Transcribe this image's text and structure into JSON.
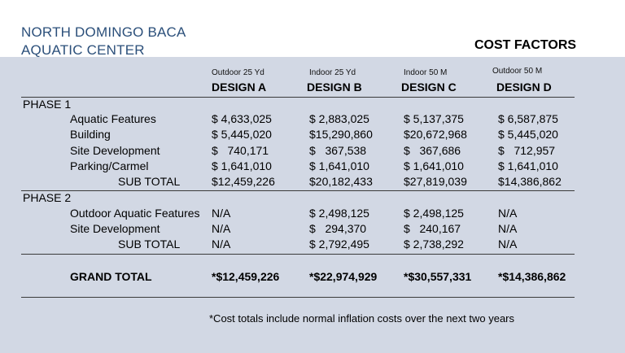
{
  "header": {
    "title_line1": "NORTH DOMINGO BACA",
    "title_line2": "AQUATIC CENTER",
    "heading": "COST FACTORS"
  },
  "designs": [
    {
      "sub": "Outdoor 25 Yd",
      "name": "DESIGN A"
    },
    {
      "sub": "Indoor 25 Yd",
      "name": "DESIGN B"
    },
    {
      "sub": "Indoor 50 M",
      "name": "DESIGN C"
    },
    {
      "sub": "Outdoor 50 M",
      "name": "DESIGN D"
    }
  ],
  "phase1": {
    "label": "PHASE 1",
    "rows": [
      {
        "label": "Aquatic Features",
        "values": [
          "$ 4,633,025",
          "$ 2,883,025",
          "$ 5,137,375",
          "$ 6,587,875"
        ]
      },
      {
        "label": "Building",
        "values": [
          "$ 5,445,020",
          "$15,290,860",
          "$20,672,968",
          "$ 5,445,020"
        ]
      },
      {
        "label": "Site Development",
        "values": [
          "$   740,171",
          "$   367,538",
          "$   367,686",
          "$   712,957"
        ]
      },
      {
        "label": "Parking/Carmel",
        "values": [
          "$ 1,641,010",
          "$ 1,641,010",
          "$ 1,641,010",
          "$ 1,641,010"
        ]
      }
    ],
    "subtotal": {
      "label": "SUB TOTAL",
      "values": [
        "$12,459,226",
        "$20,182,433",
        "$27,819,039",
        "$14,386,862"
      ]
    }
  },
  "phase2": {
    "label": "PHASE 2",
    "rows": [
      {
        "label": "Outdoor Aquatic Features",
        "values": [
          "N/A",
          "$ 2,498,125",
          "$ 2,498,125",
          "N/A"
        ]
      },
      {
        "label": "Site Development",
        "values": [
          "N/A",
          "$   294,370",
          "$   240,167",
          "N/A"
        ]
      }
    ],
    "subtotal": {
      "label": "SUB TOTAL",
      "values": [
        "N/A",
        "$ 2,792,495",
        "$ 2,738,292",
        "N/A"
      ]
    }
  },
  "grand_total": {
    "label": "GRAND TOTAL",
    "values": [
      "*$12,459,226",
      "*$22,974,929",
      "*$30,557,331",
      "*$14,386,862"
    ]
  },
  "footnote": "*Cost totals include normal inflation costs over the next two years",
  "colors": {
    "title": "#2b4f7a",
    "panel": "#d2d8e4",
    "rule": "#3a3a3a"
  }
}
